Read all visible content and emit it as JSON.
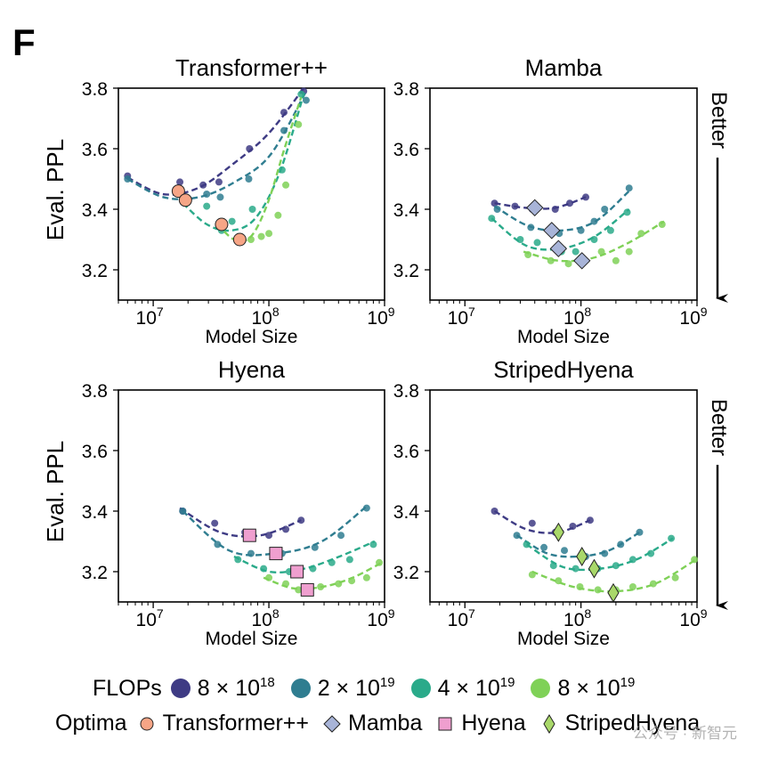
{
  "panel_letter": "F",
  "colors": {
    "flops_8e18": "#3e3b84",
    "flops_2e19": "#2f7d90",
    "flops_4e19": "#2aaa8a",
    "flops_8e19": "#7fd157",
    "opt_transformer": "#f6a586",
    "opt_mamba": "#a8b4d8",
    "opt_hyena": "#ef9fcf",
    "opt_stripedhyena": "#a9d86a"
  },
  "side_label": "Better",
  "legend": {
    "flops_title": "FLOPs",
    "flops": [
      {
        "mantissa": "8 × 10",
        "exp": "18",
        "color_key": "flops_8e18"
      },
      {
        "mantissa": "2 × 10",
        "exp": "19",
        "color_key": "flops_2e19"
      },
      {
        "mantissa": "4 × 10",
        "exp": "19",
        "color_key": "flops_4e19"
      },
      {
        "mantissa": "8 × 10",
        "exp": "19",
        "color_key": "flops_8e19"
      }
    ],
    "optima_title": "Optima",
    "optima": [
      {
        "label": "Transformer++",
        "marker": "circle",
        "color_key": "opt_transformer"
      },
      {
        "label": "Mamba",
        "marker": "diamond",
        "color_key": "opt_mamba"
      },
      {
        "label": "Hyena",
        "marker": "square",
        "color_key": "opt_hyena"
      },
      {
        "label": "StripedHyena",
        "marker": "thin-diamond",
        "color_key": "opt_stripedhyena"
      }
    ]
  },
  "watermark": "公众号 · 新智元",
  "chart_data": [
    {
      "type": "scatter",
      "title": "Transformer++",
      "xlabel": "Model Size",
      "ylabel": "Eval. PPL",
      "xscale": "log",
      "xlim": [
        5000000.0,
        1000000000.0
      ],
      "ylim": [
        3.1,
        3.8
      ],
      "yticks": [
        "3.2",
        "3.4",
        "3.6",
        "3.8"
      ],
      "xticks": [
        {
          "base": "10",
          "exp": "7"
        },
        {
          "base": "10",
          "exp": "8"
        },
        {
          "base": "10",
          "exp": "9"
        }
      ],
      "series": [
        {
          "name": "8 × 10^18",
          "color_key": "flops_8e18",
          "x": [
            6000000.0,
            17000000.0,
            27000000.0,
            37000000.0,
            68000000.0,
            135000000.0,
            200000000.0
          ],
          "y": [
            3.51,
            3.49,
            3.48,
            3.49,
            3.6,
            3.72,
            3.79
          ],
          "fit_x": [
            6000000.0,
            200000000.0
          ],
          "fit": [
            3.505,
            3.45,
            3.47,
            3.55,
            3.65,
            3.8
          ]
        },
        {
          "name": "2 × 10^19",
          "color_key": "flops_2e19",
          "x": [
            6000000.0,
            17000000.0,
            29000000.0,
            38000000.0,
            67000000.0,
            135000000.0,
            210000000.0
          ],
          "y": [
            3.5,
            3.46,
            3.45,
            3.44,
            3.5,
            3.66,
            3.76
          ],
          "fit_x": [
            6000000.0,
            210000000.0
          ],
          "fit": [
            3.5,
            3.44,
            3.44,
            3.49,
            3.58,
            3.79
          ]
        },
        {
          "name": "4 × 10^19",
          "color_key": "flops_4e19",
          "x": [
            29000000.0,
            39000000.0,
            48000000.0,
            72000000.0,
            130000000.0,
            190000000.0
          ],
          "y": [
            3.41,
            3.33,
            3.36,
            3.4,
            3.53,
            3.78
          ],
          "fit_x": [
            18000000.0,
            200000000.0
          ],
          "fit": [
            3.42,
            3.35,
            3.33,
            3.37,
            3.52,
            3.78
          ]
        },
        {
          "name": "8 × 10^19",
          "color_key": "flops_8e19",
          "x": [
            40000000.0,
            70000000.0,
            86000000.0,
            100000000.0,
            120000000.0,
            140000000.0,
            180000000.0
          ],
          "y": [
            3.34,
            3.3,
            3.31,
            3.32,
            3.38,
            3.48,
            3.68
          ],
          "fit_x": [
            36000000.0,
            190000000.0
          ],
          "fit": [
            3.35,
            3.3,
            3.31,
            3.42,
            3.6,
            3.77
          ]
        }
      ],
      "optima": {
        "marker": "circle",
        "color_key": "opt_transformer",
        "x": [
          16500000.0,
          19000000.0,
          39000000.0,
          56000000.0
        ],
        "y": [
          3.46,
          3.43,
          3.35,
          3.3
        ]
      }
    },
    {
      "type": "scatter",
      "title": "Mamba",
      "xlabel": "Model Size",
      "ylabel": "",
      "xscale": "log",
      "xlim": [
        5000000.0,
        1000000000.0
      ],
      "ylim": [
        3.1,
        3.8
      ],
      "yticks": [
        "3.2",
        "3.4",
        "3.6",
        "3.8"
      ],
      "xticks": [
        {
          "base": "10",
          "exp": "7"
        },
        {
          "base": "10",
          "exp": "8"
        },
        {
          "base": "10",
          "exp": "9"
        }
      ],
      "series": [
        {
          "name": "8 × 10^18",
          "color_key": "flops_8e18",
          "x": [
            18000000.0,
            27000000.0,
            38000000.0,
            60000000.0,
            80000000.0,
            110000000.0
          ],
          "y": [
            3.42,
            3.41,
            3.4,
            3.4,
            3.42,
            3.44
          ],
          "fit_x": [
            18000000.0,
            110000000.0
          ],
          "fit": [
            3.42,
            3.405,
            3.405,
            3.44
          ]
        },
        {
          "name": "2 × 10^19",
          "color_key": "flops_2e19",
          "x": [
            19000000.0,
            37000000.0,
            65000000.0,
            100000000.0,
            130000000.0,
            160000000.0,
            260000000.0
          ],
          "y": [
            3.4,
            3.34,
            3.32,
            3.33,
            3.36,
            3.4,
            3.47
          ],
          "fit_x": [
            18000000.0,
            260000000.0
          ],
          "fit": [
            3.41,
            3.345,
            3.33,
            3.36,
            3.46
          ]
        },
        {
          "name": "4 × 10^19",
          "color_key": "flops_4e19",
          "x": [
            17000000.0,
            30000000.0,
            42000000.0,
            68000000.0,
            90000000.0,
            130000000.0,
            180000000.0,
            250000000.0
          ],
          "y": [
            3.37,
            3.3,
            3.29,
            3.26,
            3.26,
            3.3,
            3.33,
            3.39
          ],
          "fit_x": [
            17000000.0,
            260000000.0
          ],
          "fit": [
            3.37,
            3.28,
            3.27,
            3.31,
            3.4
          ]
        },
        {
          "name": "8 × 10^19",
          "color_key": "flops_8e19",
          "x": [
            35000000.0,
            55000000.0,
            78000000.0,
            100000000.0,
            150000000.0,
            200000000.0,
            260000000.0,
            330000000.0,
            500000000.0
          ],
          "y": [
            3.25,
            3.23,
            3.22,
            3.24,
            3.26,
            3.23,
            3.26,
            3.32,
            3.35
          ],
          "fit_x": [
            32000000.0,
            520000000.0
          ],
          "fit": [
            3.26,
            3.23,
            3.24,
            3.29,
            3.36
          ]
        }
      ],
      "optima": {
        "marker": "diamond",
        "color_key": "opt_mamba",
        "x": [
          40000000.0,
          56000000.0,
          64000000.0,
          102000000.0
        ],
        "y": [
          3.405,
          3.33,
          3.27,
          3.23
        ]
      }
    },
    {
      "type": "scatter",
      "title": "Hyena",
      "xlabel": "Model Size",
      "ylabel": "Eval. PPL",
      "xscale": "log",
      "xlim": [
        5000000.0,
        1000000000.0
      ],
      "ylim": [
        3.1,
        3.8
      ],
      "yticks": [
        "3.2",
        "3.4",
        "3.6",
        "3.8"
      ],
      "xticks": [
        {
          "base": "10",
          "exp": "7"
        },
        {
          "base": "10",
          "exp": "8"
        },
        {
          "base": "10",
          "exp": "9"
        }
      ],
      "series": [
        {
          "name": "8 × 10^18",
          "color_key": "flops_8e18",
          "x": [
            18000000.0,
            34000000.0,
            62000000.0,
            100000000.0,
            140000000.0,
            190000000.0
          ],
          "y": [
            3.4,
            3.36,
            3.33,
            3.32,
            3.34,
            3.37
          ],
          "fit_x": [
            17000000.0,
            190000000.0
          ],
          "fit": [
            3.41,
            3.33,
            3.32,
            3.37
          ]
        },
        {
          "name": "2 × 10^19",
          "color_key": "flops_2e19",
          "x": [
            18000000.0,
            36000000.0,
            70000000.0,
            130000000.0,
            250000000.0,
            420000000.0,
            700000000.0
          ],
          "y": [
            3.4,
            3.29,
            3.26,
            3.26,
            3.28,
            3.32,
            3.41
          ],
          "fit_x": [
            18000000.0,
            720000000.0
          ],
          "fit": [
            3.4,
            3.27,
            3.26,
            3.3,
            3.42
          ]
        },
        {
          "name": "4 × 10^19",
          "color_key": "flops_4e19",
          "x": [
            54000000.0,
            90000000.0,
            150000000.0,
            240000000.0,
            350000000.0,
            500000000.0,
            800000000.0
          ],
          "y": [
            3.24,
            3.21,
            3.2,
            3.21,
            3.23,
            3.24,
            3.29
          ],
          "fit_x": [
            50000000.0,
            820000000.0
          ],
          "fit": [
            3.25,
            3.2,
            3.21,
            3.25,
            3.3
          ]
        },
        {
          "name": "8 × 10^19",
          "color_key": "flops_8e19",
          "x": [
            100000000.0,
            140000000.0,
            180000000.0,
            280000000.0,
            400000000.0,
            520000000.0,
            700000000.0,
            900000000.0
          ],
          "y": [
            3.18,
            3.16,
            3.14,
            3.15,
            3.16,
            3.17,
            3.18,
            3.23
          ],
          "fit_x": [
            90000000.0,
            950000000.0
          ],
          "fit": [
            3.18,
            3.145,
            3.15,
            3.18,
            3.23
          ]
        }
      ],
      "optima": {
        "marker": "square",
        "color_key": "opt_hyena",
        "x": [
          68000000.0,
          115000000.0,
          175000000.0,
          215000000.0
        ],
        "y": [
          3.32,
          3.26,
          3.2,
          3.14
        ]
      }
    },
    {
      "type": "scatter",
      "title": "StripedHyena",
      "xlabel": "Model Size",
      "ylabel": "",
      "xscale": "log",
      "xlim": [
        5000000.0,
        1000000000.0
      ],
      "ylim": [
        3.1,
        3.8
      ],
      "yticks": [
        "3.2",
        "3.4",
        "3.6",
        "3.8"
      ],
      "xticks": [
        {
          "base": "10",
          "exp": "7"
        },
        {
          "base": "10",
          "exp": "8"
        },
        {
          "base": "10",
          "exp": "9"
        }
      ],
      "series": [
        {
          "name": "8 × 10^18",
          "color_key": "flops_8e18",
          "x": [
            18000000.0,
            38000000.0,
            60000000.0,
            85000000.0,
            120000000.0
          ],
          "y": [
            3.4,
            3.36,
            3.33,
            3.35,
            3.37
          ],
          "fit_x": [
            18000000.0,
            120000000.0
          ],
          "fit": [
            3.4,
            3.34,
            3.33,
            3.37
          ]
        },
        {
          "name": "2 × 10^19",
          "color_key": "flops_2e19",
          "x": [
            28000000.0,
            48000000.0,
            72000000.0,
            110000000.0,
            160000000.0,
            220000000.0,
            320000000.0
          ],
          "y": [
            3.32,
            3.28,
            3.27,
            3.25,
            3.26,
            3.29,
            3.33
          ],
          "fit_x": [
            28000000.0,
            320000000.0
          ],
          "fit": [
            3.32,
            3.26,
            3.25,
            3.27,
            3.33
          ]
        },
        {
          "name": "4 × 10^19",
          "color_key": "flops_4e19",
          "x": [
            34000000.0,
            58000000.0,
            90000000.0,
            140000000.0,
            200000000.0,
            280000000.0,
            400000000.0,
            600000000.0
          ],
          "y": [
            3.29,
            3.22,
            3.21,
            3.21,
            3.22,
            3.24,
            3.26,
            3.31
          ],
          "fit_x": [
            34000000.0,
            620000000.0
          ],
          "fit": [
            3.29,
            3.215,
            3.21,
            3.24,
            3.31
          ]
        },
        {
          "name": "8 × 10^19",
          "color_key": "flops_8e19",
          "x": [
            38000000.0,
            64000000.0,
            98000000.0,
            140000000.0,
            200000000.0,
            280000000.0,
            420000000.0,
            650000000.0,
            950000000.0
          ],
          "y": [
            3.19,
            3.17,
            3.15,
            3.14,
            3.14,
            3.15,
            3.16,
            3.18,
            3.24
          ],
          "fit_x": [
            38000000.0,
            980000000.0
          ],
          "fit": [
            3.2,
            3.15,
            3.135,
            3.16,
            3.24
          ]
        }
      ],
      "optima": {
        "marker": "thin-diamond",
        "color_key": "opt_stripedhyena",
        "x": [
          64000000.0,
          102000000.0,
          130000000.0,
          190000000.0
        ],
        "y": [
          3.33,
          3.25,
          3.21,
          3.13
        ]
      }
    }
  ]
}
